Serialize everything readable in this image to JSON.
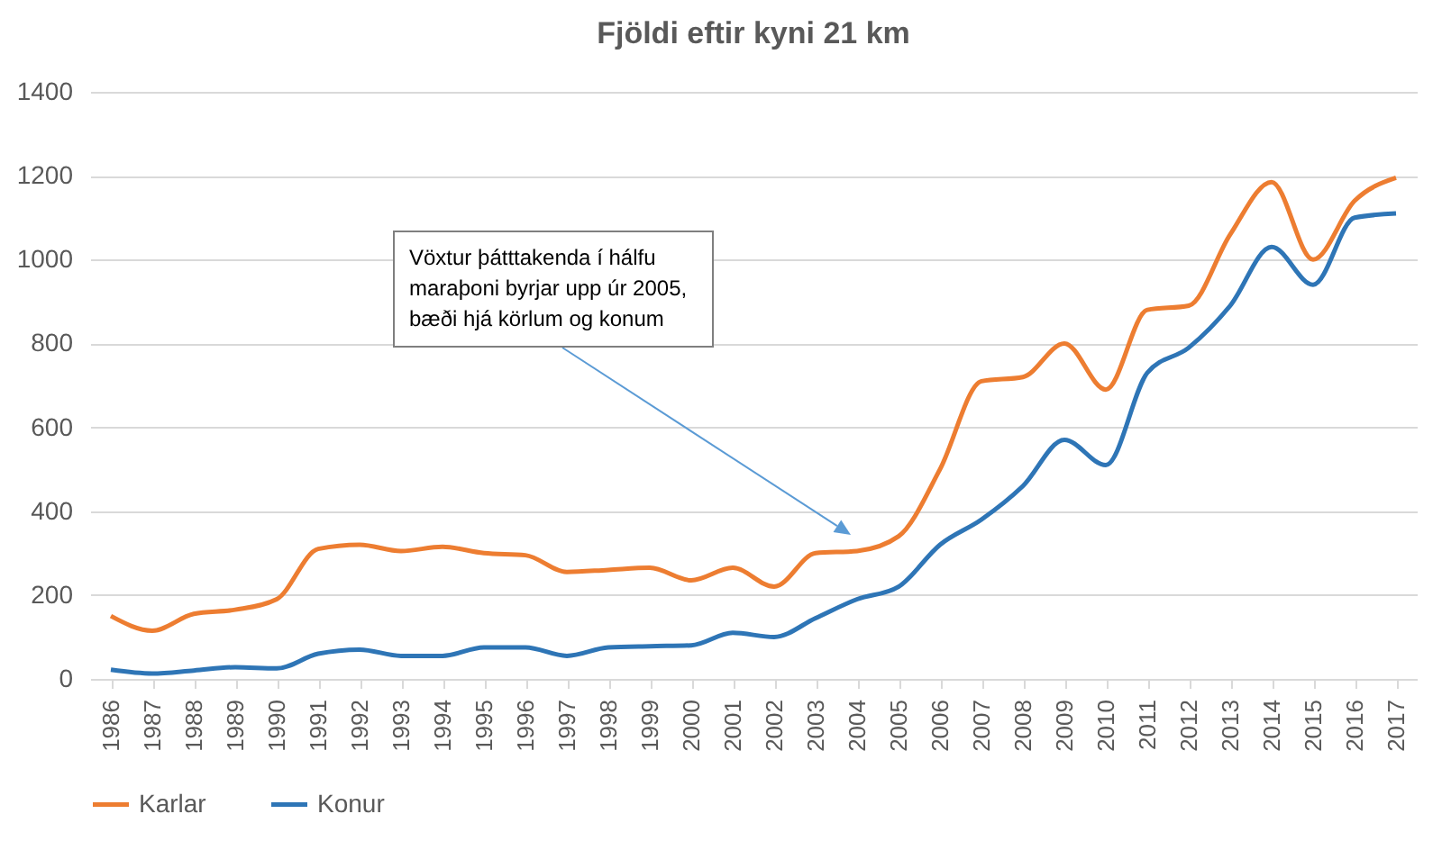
{
  "chart_data": {
    "type": "line",
    "title": "Fjöldi eftir kyni 21 km",
    "categories": [
      "1986",
      "1987",
      "1988",
      "1989",
      "1990",
      "1991",
      "1992",
      "1993",
      "1994",
      "1995",
      "1996",
      "1997",
      "1998",
      "1999",
      "2000",
      "2001",
      "2002",
      "2003",
      "2004",
      "2005",
      "2006",
      "2007",
      "2008",
      "2009",
      "2010",
      "2011",
      "2012",
      "2013",
      "2014",
      "2015",
      "2016",
      "2017"
    ],
    "series": [
      {
        "name": "Karlar",
        "color": "#ed7d31",
        "values": [
          150,
          115,
          155,
          165,
          190,
          310,
          320,
          305,
          315,
          300,
          295,
          255,
          260,
          265,
          235,
          265,
          220,
          300,
          305,
          340,
          500,
          710,
          720,
          800,
          690,
          880,
          890,
          1060,
          1185,
          1000,
          1140,
          1195
        ]
      },
      {
        "name": "Konur",
        "color": "#2e75b6",
        "values": [
          22,
          13,
          20,
          28,
          25,
          60,
          70,
          55,
          55,
          75,
          75,
          55,
          75,
          78,
          80,
          110,
          100,
          145,
          190,
          220,
          320,
          380,
          460,
          570,
          510,
          730,
          790,
          890,
          1030,
          940,
          1100,
          1110
        ]
      }
    ],
    "ylim": [
      0,
      1400
    ],
    "yticks": [
      0,
      200,
      400,
      600,
      800,
      1000,
      1200,
      1400
    ],
    "grid": "y",
    "legend": "bottom",
    "annotations": [
      "Vöxtur þátttakenda í hálfu maraþoni byrjar upp úr 2005, bæði hjá körlum og konum"
    ]
  }
}
